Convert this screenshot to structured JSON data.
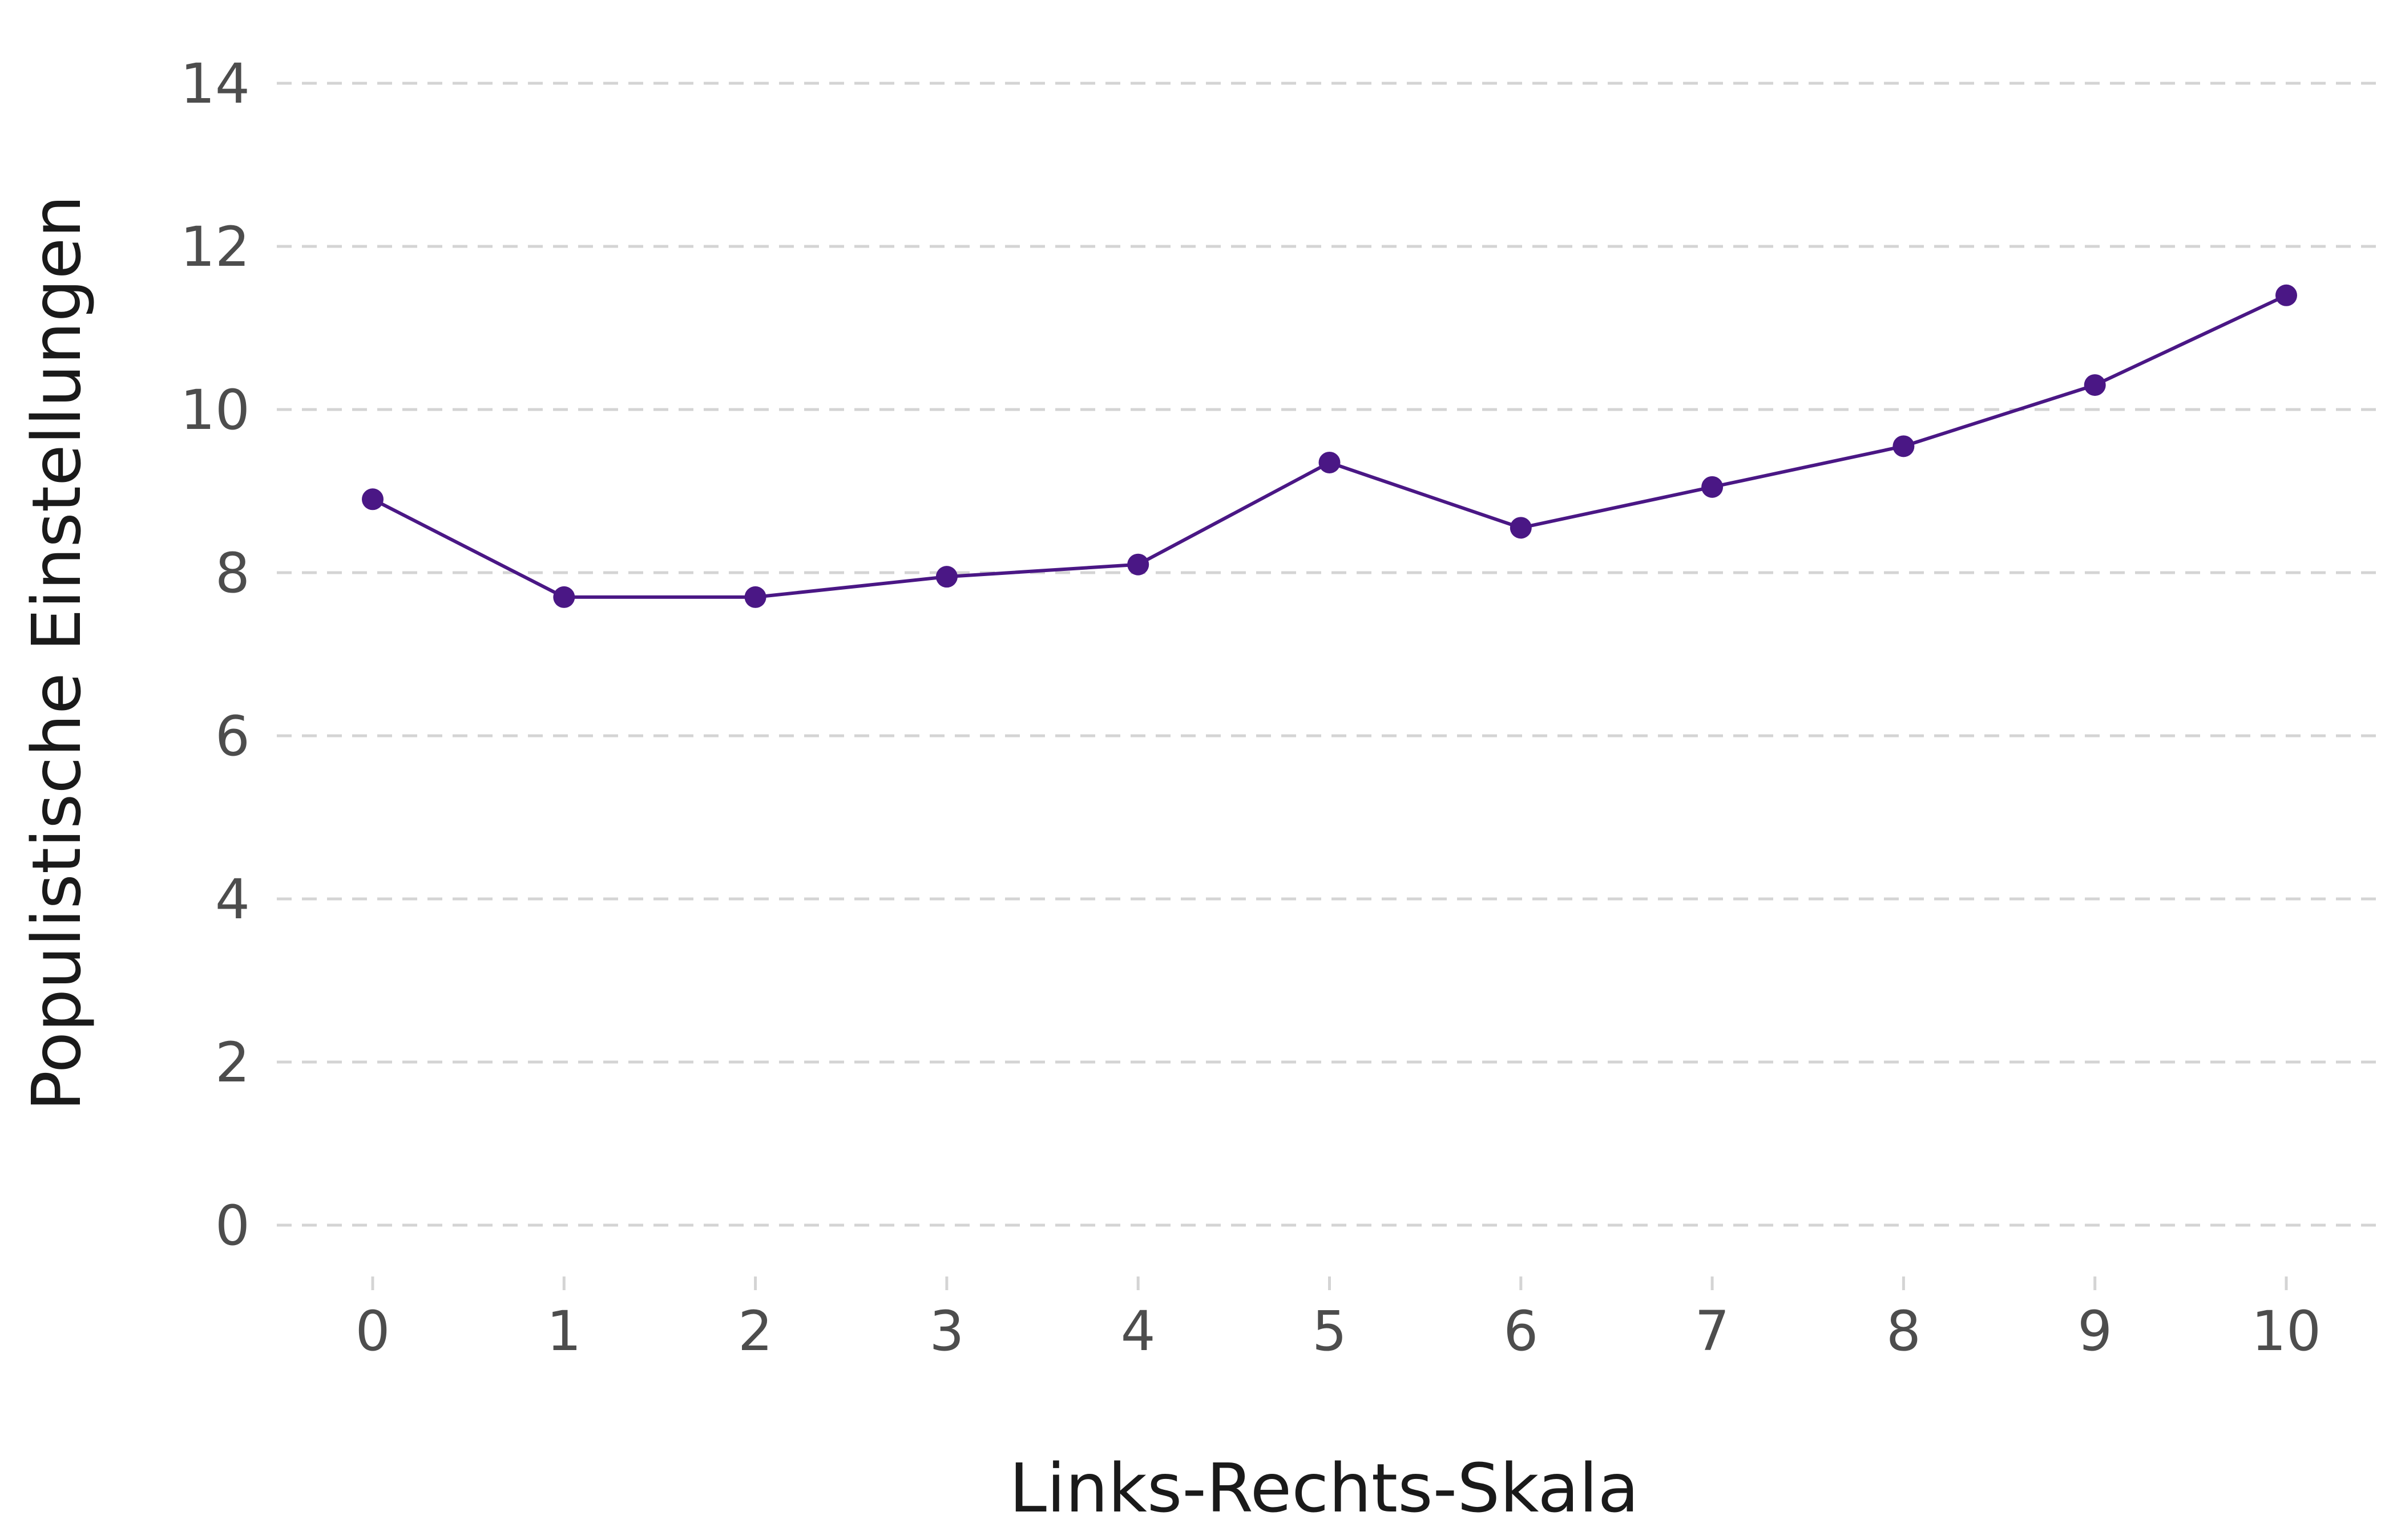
{
  "chart_data": {
    "type": "line",
    "title": "",
    "xlabel": "Links-Rechts-Skala",
    "ylabel": "Populistische Einstellungen",
    "x": [
      0,
      1,
      2,
      3,
      4,
      5,
      6,
      7,
      8,
      9,
      10
    ],
    "x_ticks": [
      "0",
      "1",
      "2",
      "3",
      "4",
      "5",
      "6",
      "7",
      "8",
      "9",
      "10"
    ],
    "y_ticks": [
      "0",
      "2",
      "4",
      "6",
      "8",
      "10",
      "12",
      "14"
    ],
    "xlim": [
      -0.5,
      10.5
    ],
    "ylim": [
      -0.3,
      14.6
    ],
    "grid": "horizontal dashed",
    "legend": "none",
    "series": [
      {
        "color": "#4a1785",
        "values": [
          8.9,
          7.7,
          7.7,
          7.95,
          8.1,
          9.35,
          8.55,
          9.05,
          9.55,
          10.3,
          11.4
        ]
      }
    ]
  }
}
